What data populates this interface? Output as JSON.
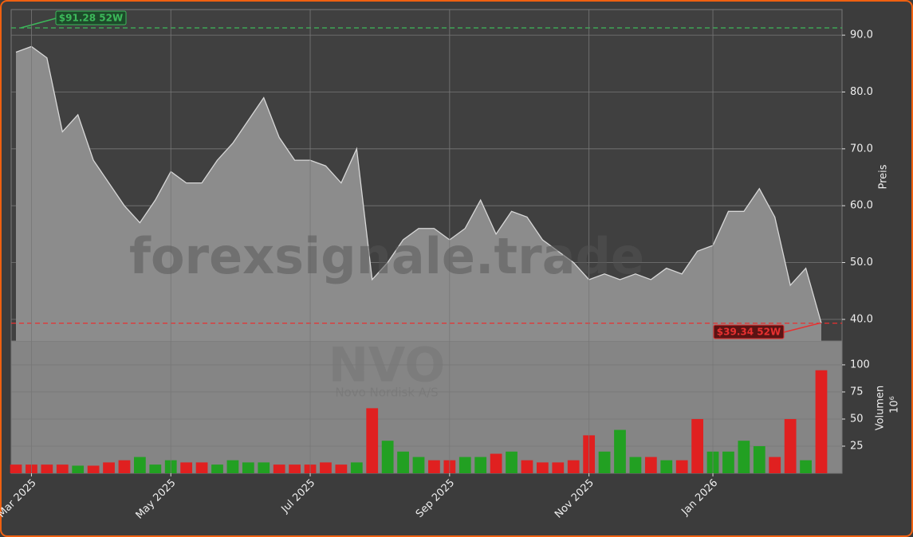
{
  "chart_data": [
    {
      "type": "area",
      "color": "#8c8c8c",
      "line_color": "#d8d8d8",
      "categories": [
        null,
        "Mar 2025",
        null,
        null,
        null,
        null,
        null,
        null,
        null,
        null,
        "May 2025",
        null,
        null,
        null,
        null,
        null,
        null,
        null,
        null,
        "Jul 2025",
        null,
        null,
        null,
        null,
        null,
        null,
        null,
        null,
        "Sep 2025",
        null,
        null,
        null,
        null,
        null,
        null,
        null,
        null,
        "Nov 2025",
        null,
        null,
        null,
        null,
        null,
        null,
        null,
        "Jan 2026",
        null,
        null,
        null,
        null,
        null,
        null,
        null
      ],
      "values": [
        87,
        88,
        86,
        73,
        76,
        68,
        64,
        60,
        57,
        61,
        66,
        64,
        64,
        68,
        71,
        75,
        79,
        72,
        68,
        68,
        67,
        64,
        70,
        47,
        50,
        54,
        56,
        56,
        54,
        56,
        61,
        55,
        59,
        58,
        54,
        52,
        50,
        47,
        48,
        47,
        48,
        47,
        49,
        48,
        52,
        53,
        59,
        59,
        63,
        58,
        46,
        49,
        39.34
      ],
      "ylim": [
        36.2,
        94.5
      ],
      "yticks": [
        {
          "value": 40,
          "label": "40.0"
        },
        {
          "value": 50,
          "label": "50.0"
        },
        {
          "value": 60,
          "label": "60.0"
        },
        {
          "value": 70,
          "label": "70.0"
        },
        {
          "value": 80,
          "label": "80.0"
        },
        {
          "value": 90,
          "label": "90.0"
        }
      ],
      "ylabel": "Preis",
      "grid": true,
      "annotations": [
        {
          "text": "$91.28 52W",
          "value": 91.28,
          "color": "#3cb95a"
        },
        {
          "text": "$39.34 52W",
          "value": 39.34,
          "color": "#e83030"
        }
      ],
      "watermark": "forexsignale.trade",
      "symbol": "NVO",
      "company": "Novo Nordisk A/S"
    },
    {
      "type": "bar",
      "values": [
        8,
        8,
        8,
        8,
        7,
        7,
        10,
        12,
        15,
        8,
        12,
        10,
        10,
        8,
        12,
        10,
        10,
        8,
        8,
        8,
        10,
        8,
        10,
        60,
        30,
        20,
        15,
        12,
        12,
        15,
        15,
        18,
        20,
        12,
        10,
        10,
        12,
        35,
        20,
        40,
        15,
        15,
        12,
        12,
        50,
        20,
        20,
        30,
        25,
        15,
        50,
        12,
        95
      ],
      "colors": [
        "#e02020",
        "#e02020",
        "#e02020",
        "#e02020",
        "#22a022",
        "#e02020",
        "#e02020",
        "#e02020",
        "#22a022",
        "#22a022",
        "#22a022",
        "#e02020",
        "#e02020",
        "#22a022",
        "#22a022",
        "#22a022",
        "#22a022",
        "#e02020",
        "#e02020",
        "#e02020",
        "#e02020",
        "#e02020",
        "#22a022",
        "#e02020",
        "#22a022",
        "#22a022",
        "#22a022",
        "#e02020",
        "#e02020",
        "#22a022",
        "#22a022",
        "#e02020",
        "#22a022",
        "#e02020",
        "#e02020",
        "#e02020",
        "#e02020",
        "#e02020",
        "#22a022",
        "#22a022",
        "#22a022",
        "#e02020",
        "#22a022",
        "#e02020",
        "#e02020",
        "#22a022",
        "#22a022",
        "#22a022",
        "#22a022",
        "#e02020",
        "#e02020",
        "#22a022",
        "#e02020"
      ],
      "ylim": [
        0,
        122
      ],
      "yticks": [
        25,
        50,
        75,
        100
      ],
      "ylabel": "Volumen",
      "ylabel_unit": "10⁶",
      "grid": true
    }
  ]
}
